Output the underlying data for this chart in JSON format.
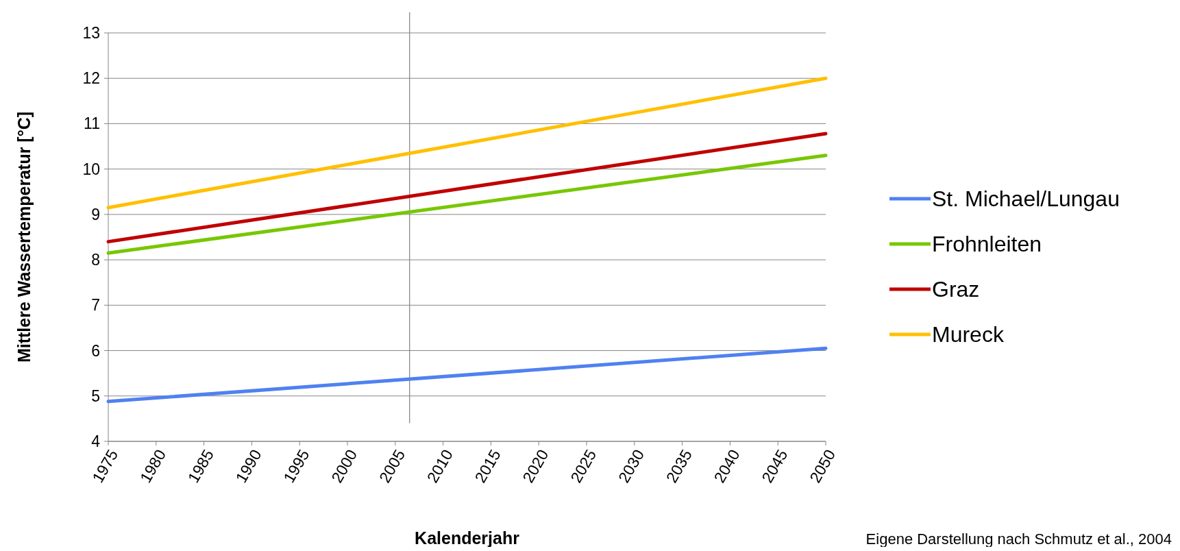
{
  "chart_data": {
    "type": "line",
    "xlabel": "Kalenderjahr",
    "ylabel": "Mittlere Wassertemperatur [°C]",
    "x": [
      1975,
      2050
    ],
    "series": [
      {
        "name": "St. Michael/Lungau",
        "color": "#4f81f0",
        "values": [
          4.88,
          6.05
        ]
      },
      {
        "name": "Frohnleiten",
        "color": "#77c700",
        "values": [
          8.15,
          10.3
        ]
      },
      {
        "name": "Graz",
        "color": "#c00000",
        "values": [
          8.4,
          10.78
        ]
      },
      {
        "name": "Mureck",
        "color": "#ffc000",
        "values": [
          9.15,
          12.0
        ]
      }
    ],
    "xlim": [
      1975,
      2050
    ],
    "xticks": [
      1975,
      1980,
      1985,
      1990,
      1995,
      2000,
      2005,
      2010,
      2015,
      2020,
      2025,
      2030,
      2035,
      2040,
      2045,
      2050
    ],
    "ylim": [
      4,
      13
    ],
    "yticks": [
      4,
      5,
      6,
      7,
      8,
      9,
      10,
      11,
      12,
      13
    ],
    "grid": "y",
    "legend": "right",
    "marker": "none",
    "line_style": "solid",
    "ref_lines": [
      {
        "axis": "x",
        "value": 2006.5,
        "color": "#808080"
      }
    ],
    "annotations": [
      "Eigene Darstellung nach Schmutz et al., 2004"
    ]
  }
}
